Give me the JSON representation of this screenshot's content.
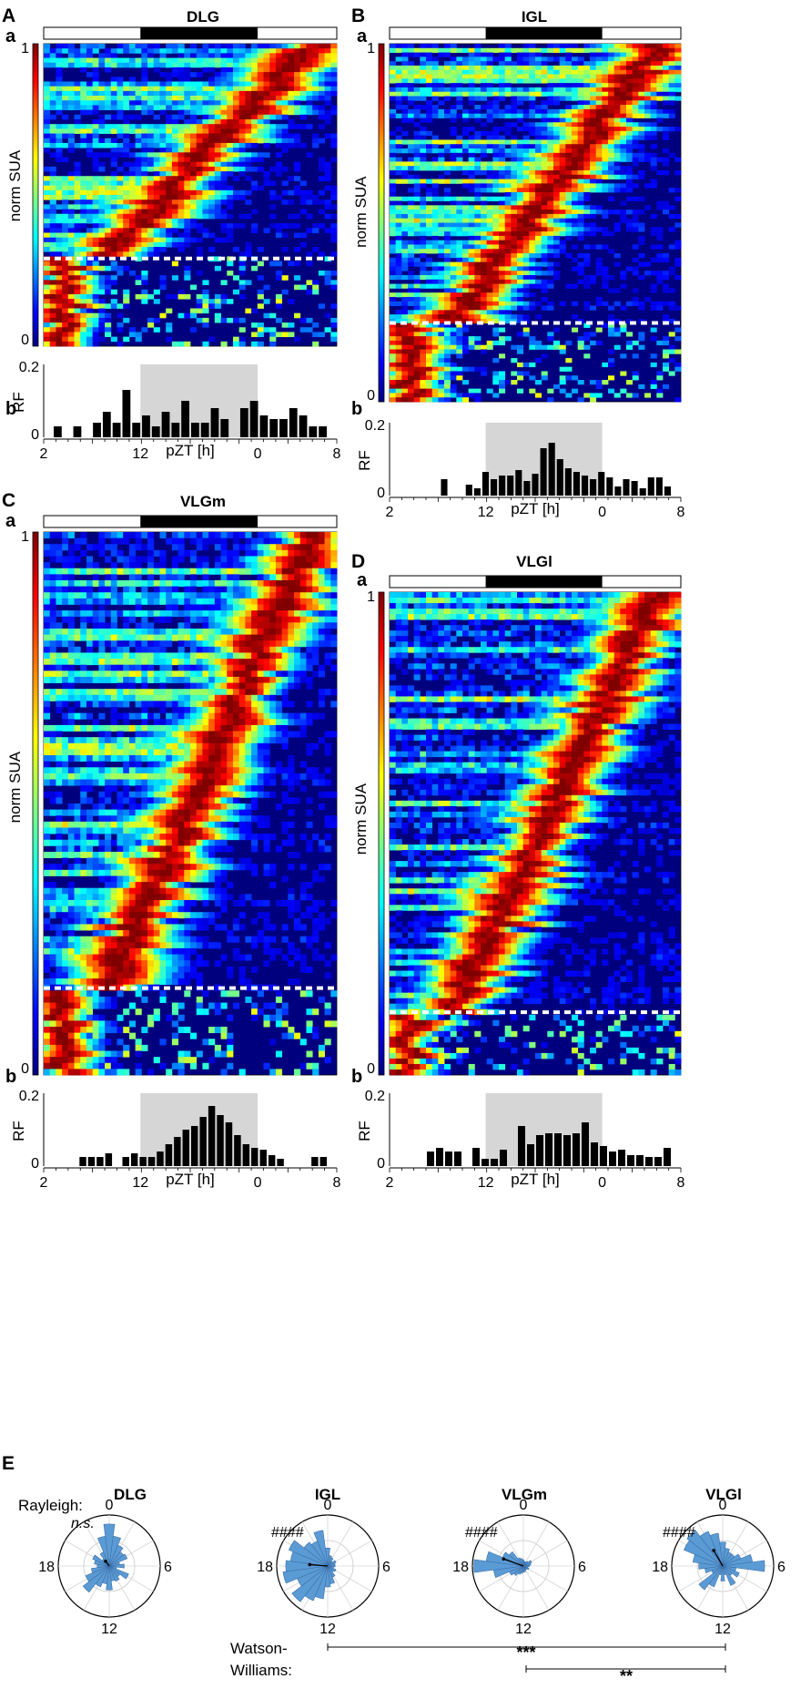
{
  "figure": {
    "panel_labels": {
      "A": "A",
      "B": "B",
      "C": "C",
      "D": "D",
      "E": "E"
    },
    "sub_labels": {
      "a": "a",
      "b": "b"
    },
    "heatmap_colorbar_label": "norm SUA",
    "colorbar_ticks": [
      "1",
      "0"
    ],
    "histogram_ylabel": "RF",
    "histogram_xlabel": "pZT [h]",
    "histogram_yticks": [
      "0.2",
      "0"
    ],
    "histogram_xticks": [
      "2",
      "12",
      "0",
      "8"
    ],
    "rayleigh_label": "Rayleigh:",
    "watson_williams_label_line1": "Watson-",
    "watson_williams_label_line2": "Williams:",
    "polar_ticks": {
      "top": "0",
      "right": "6",
      "bottom": "12",
      "left": "18"
    },
    "significance": {
      "pair1": "***",
      "pair2": "**"
    },
    "colors": {
      "bar": "#000000",
      "night_shade": "#d6d6d6",
      "rose": "#5b9bd5",
      "heat_background": "#00007f"
    }
  },
  "chart_data": [
    {
      "type": "heatmap",
      "panel": "A",
      "title": "DLG",
      "rows": 64,
      "separator_row_fraction": 0.71,
      "colorbar": {
        "min": 0,
        "max": 1
      }
    },
    {
      "type": "bar",
      "panel": "A",
      "title": "DLG",
      "xlabel": "pZT [h]",
      "ylabel": "RF",
      "ylim": [
        0,
        0.2
      ],
      "shaded_range": [
        12,
        0
      ],
      "values": [
        0.03,
        0,
        0.03,
        0,
        0.04,
        0.07,
        0.04,
        0.13,
        0.04,
        0.06,
        0.03,
        0.07,
        0.04,
        0.1,
        0.04,
        0.04,
        0.08,
        0.05,
        0,
        0.08,
        0.1,
        0.06,
        0.05,
        0.05,
        0.08,
        0.06,
        0.03,
        0.03
      ]
    },
    {
      "type": "heatmap",
      "panel": "B",
      "title": "IGL",
      "rows": 82,
      "separator_row_fraction": 0.78,
      "colorbar": {
        "min": 0,
        "max": 1
      }
    },
    {
      "type": "bar",
      "panel": "B",
      "title": "IGL",
      "xlabel": "pZT [h]",
      "ylabel": "RF",
      "ylim": [
        0,
        0.2
      ],
      "shaded_range": [
        12,
        0
      ],
      "values": [
        0,
        0,
        0,
        0,
        0,
        0.045,
        0,
        0,
        0.03,
        0.02,
        0.065,
        0.045,
        0.055,
        0.055,
        0.07,
        0.04,
        0.06,
        0.13,
        0.145,
        0.1,
        0.075,
        0.065,
        0.055,
        0.045,
        0.065,
        0.05,
        0.025,
        0.045,
        0.04,
        0.02,
        0.05,
        0.05,
        0.025
      ]
    },
    {
      "type": "heatmap",
      "panel": "C",
      "title": "VLGm",
      "rows": 90,
      "separator_row_fraction": 0.84,
      "colorbar": {
        "min": 0,
        "max": 1
      }
    },
    {
      "type": "bar",
      "panel": "C",
      "title": "VLGm",
      "xlabel": "pZT [h]",
      "ylabel": "RF",
      "ylim": [
        0,
        0.2
      ],
      "shaded_range": [
        12,
        0
      ],
      "values": [
        0,
        0,
        0,
        0.025,
        0.025,
        0.025,
        0.035,
        0,
        0.025,
        0.035,
        0.025,
        0.025,
        0.04,
        0.06,
        0.08,
        0.1,
        0.11,
        0.135,
        0.165,
        0.14,
        0.12,
        0.085,
        0.06,
        0.05,
        0.045,
        0.03,
        0.02,
        0,
        0,
        0,
        0.025,
        0.025
      ]
    },
    {
      "type": "heatmap",
      "panel": "D",
      "title": "VLGl",
      "rows": 88,
      "separator_row_fraction": 0.87,
      "colorbar": {
        "min": 0,
        "max": 1
      }
    },
    {
      "type": "bar",
      "panel": "D",
      "title": "VLGl",
      "xlabel": "pZT [h]",
      "ylabel": "RF",
      "ylim": [
        0,
        0.2
      ],
      "shaded_range": [
        12,
        0
      ],
      "values": [
        0,
        0,
        0,
        0.04,
        0.05,
        0.04,
        0.04,
        0,
        0.05,
        0.02,
        0.02,
        0.045,
        0,
        0.11,
        0.06,
        0.085,
        0.09,
        0.09,
        0.085,
        0.09,
        0.12,
        0.065,
        0.055,
        0.04,
        0.045,
        0.03,
        0.03,
        0.025,
        0.025,
        0.05
      ]
    },
    {
      "type": "rose",
      "panel": "E",
      "title": "DLG",
      "rayleigh": "n.s.",
      "r_max": 0.34,
      "bins_hours": [
        0,
        1,
        2,
        3,
        4,
        5,
        6,
        7,
        8,
        9,
        10,
        11,
        12,
        13,
        14,
        15,
        16,
        17,
        18,
        19,
        20,
        21,
        22,
        23
      ],
      "values": [
        0.28,
        0.2,
        0.15,
        0.12,
        0.13,
        0.07,
        0.1,
        0.05,
        0.14,
        0.09,
        0.11,
        0.1,
        0.16,
        0.12,
        0.15,
        0.22,
        0.17,
        0.12,
        0.08,
        0.1,
        0.12,
        0.06,
        0.1,
        0.2
      ],
      "mean_vector_hour": 21.5,
      "mean_vector_length": 0.04
    },
    {
      "type": "rose",
      "panel": "E",
      "title": "IGL",
      "rayleigh": "####",
      "r_max": 0.34,
      "bins_hours": [
        0,
        1,
        2,
        3,
        4,
        5,
        6,
        7,
        8,
        9,
        10,
        11,
        12,
        13,
        14,
        15,
        16,
        17,
        18,
        19,
        20,
        21,
        22,
        23
      ],
      "values": [
        0.12,
        0.07,
        0.06,
        0.04,
        0.06,
        0.05,
        0.05,
        0.04,
        0.06,
        0.05,
        0.08,
        0.12,
        0.14,
        0.22,
        0.25,
        0.3,
        0.22,
        0.3,
        0.28,
        0.25,
        0.28,
        0.2,
        0.18,
        0.24
      ],
      "mean_vector_hour": 18.3,
      "mean_vector_length": 0.12
    },
    {
      "type": "rose",
      "panel": "E",
      "title": "VLGm",
      "rayleigh": "####",
      "r_max": 0.34,
      "bins_hours": [
        0,
        1,
        2,
        3,
        4,
        5,
        6,
        7,
        8,
        9,
        10,
        11,
        12,
        13,
        14,
        15,
        16,
        17,
        18,
        19,
        20,
        21,
        22,
        23
      ],
      "values": [
        0.04,
        0.03,
        0.03,
        0.04,
        0.06,
        0.05,
        0.04,
        0.03,
        0.04,
        0.03,
        0.03,
        0.04,
        0.04,
        0.05,
        0.06,
        0.08,
        0.1,
        0.2,
        0.33,
        0.25,
        0.15,
        0.12,
        0.06,
        0.05
      ],
      "mean_vector_hour": 19.3,
      "mean_vector_length": 0.14
    },
    {
      "type": "rose",
      "panel": "E",
      "title": "VLGl",
      "rayleigh": "####",
      "r_max": 0.34,
      "bins_hours": [
        0,
        1,
        2,
        3,
        4,
        5,
        6,
        7,
        8,
        9,
        10,
        11,
        12,
        13,
        14,
        15,
        16,
        17,
        18,
        19,
        20,
        21,
        22,
        23
      ],
      "values": [
        0.16,
        0.12,
        0.1,
        0.1,
        0.13,
        0.2,
        0.28,
        0.09,
        0.12,
        0.08,
        0.14,
        0.06,
        0.1,
        0.06,
        0.15,
        0.2,
        0.08,
        0.12,
        0.16,
        0.2,
        0.28,
        0.3,
        0.25,
        0.22
      ],
      "mean_vector_hour": 22.0,
      "mean_vector_length": 0.12
    }
  ]
}
